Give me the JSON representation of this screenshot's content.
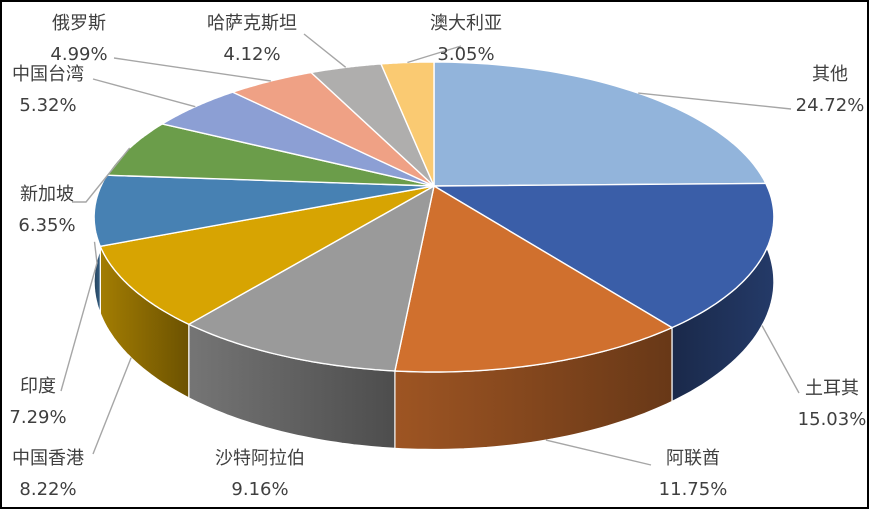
{
  "chart": {
    "background_color": "#FFFFFF",
    "border_color": "#000000",
    "text_color": "#3F3F3F",
    "leader_line_color": "#A6A6A6"
  },
  "chart_data": {
    "type": "pie",
    "style": "3d-pie",
    "title": "",
    "legend_position": "none",
    "data_labels": "outside-with-leader-lines",
    "clockwise_from_top": true,
    "unit": "%",
    "slices": [
      {
        "label": "其他",
        "value": 24.72,
        "pct_label": "24.72%",
        "color": "#92B4DB"
      },
      {
        "label": "土耳其",
        "value": 15.03,
        "pct_label": "15.03%",
        "color": "#3A5EA8"
      },
      {
        "label": "阿联酋",
        "value": 11.75,
        "pct_label": "11.75%",
        "color": "#D0702E"
      },
      {
        "label": "沙特阿拉伯",
        "value": 9.16,
        "pct_label": "9.16%",
        "color": "#9A9A9A"
      },
      {
        "label": "中国香港",
        "value": 8.22,
        "pct_label": "8.22%",
        "color": "#D7A402"
      },
      {
        "label": "印度",
        "value": 7.29,
        "pct_label": "7.29%",
        "color": "#4781B3"
      },
      {
        "label": "新加坡",
        "value": 6.35,
        "pct_label": "6.35%",
        "color": "#6B9D4A"
      },
      {
        "label": "中国台湾",
        "value": 5.32,
        "pct_label": "5.32%",
        "color": "#8C9FD4"
      },
      {
        "label": "俄罗斯",
        "value": 4.99,
        "pct_label": "4.99%",
        "color": "#EFA185"
      },
      {
        "label": "哈萨克斯坦",
        "value": 4.12,
        "pct_label": "4.12%",
        "color": "#AFAEAD"
      },
      {
        "label": "澳大利亚",
        "value": 3.05,
        "pct_label": "3.05%",
        "color": "#FACA72"
      }
    ]
  }
}
